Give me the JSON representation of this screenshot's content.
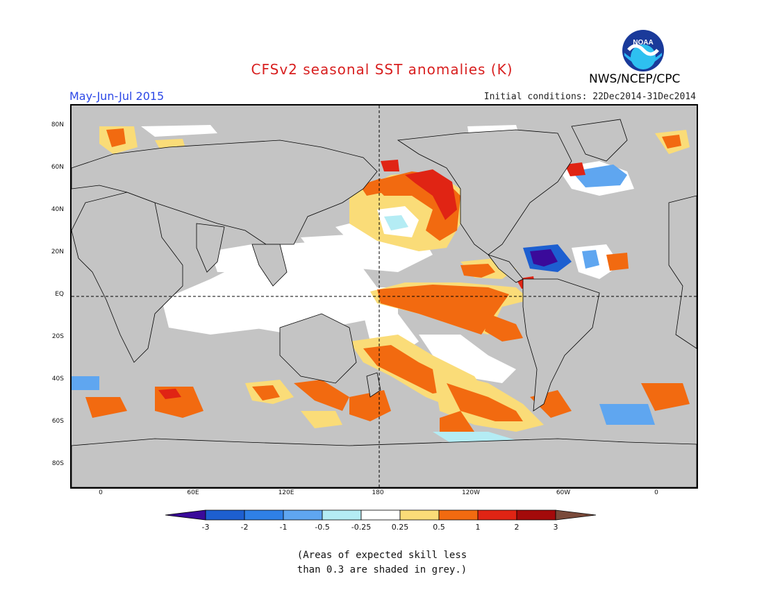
{
  "header": {
    "title": "CFSv2 seasonal SST anomalies (K)",
    "season": "May-Jun-Jul 2015",
    "initial_conditions": "Initial conditions: 22Dec2014-31Dec2014",
    "agency": "NWS/NCEP/CPC",
    "logo_text": "NOAA"
  },
  "map": {
    "lat_labels": [
      "80N",
      "60N",
      "40N",
      "20N",
      "EQ",
      "20S",
      "40S",
      "60S",
      "80S"
    ],
    "lon_labels": [
      "0",
      "60E",
      "120E",
      "180",
      "120W",
      "60W",
      "0"
    ],
    "grey_shading_meaning": "skill less than 0.3"
  },
  "colorbar": {
    "tick_labels": [
      "-3",
      "-2",
      "-1",
      "-0.5",
      "-0.25",
      "0.25",
      "0.5",
      "1",
      "2",
      "3"
    ],
    "colors": [
      "#3a0a9a",
      "#1d5fd0",
      "#2f80e6",
      "#5fa6f0",
      "#b4ecf4",
      "#ffffff",
      "#fadc78",
      "#f26a10",
      "#e02414",
      "#a40a0a",
      "#7a4a3a"
    ]
  },
  "footnote": {
    "line1": "(Areas of expected skill less",
    "line2": "than 0.3 are shaded in grey.)"
  }
}
